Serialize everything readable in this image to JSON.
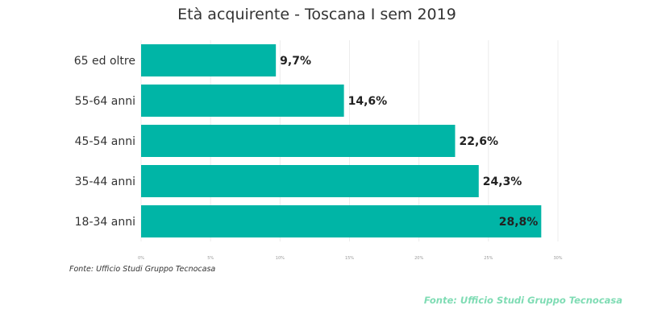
{
  "chart_data": {
    "type": "bar",
    "orientation": "horizontal",
    "title": "Età acquirente - Toscana I sem 2019",
    "categories": [
      "65 ed oltre",
      "55-64 anni",
      "45-54 anni",
      "35-44 anni",
      "18-34 anni"
    ],
    "values": [
      9.7,
      14.6,
      22.6,
      24.3,
      28.8
    ],
    "value_labels": [
      "9,7%",
      "14,6%",
      "22,6%",
      "24,3%",
      "28,8%"
    ],
    "xlim": [
      0,
      30
    ],
    "xticks": [
      0,
      5,
      10,
      15,
      20,
      25,
      30
    ],
    "xtick_labels": [
      "0%",
      "5%",
      "10%",
      "15%",
      "20%",
      "25%",
      "30%"
    ],
    "grid": true,
    "bar_color": "#00b5a6"
  },
  "source_text": "Fonte: Ufficio Studi Gruppo Tecnocasa",
  "watermark_text": "Fonte: Ufficio Studi Gruppo Tecnocasa",
  "colors": {
    "bar": "#00b5a6",
    "watermark": "#7fdcb4"
  }
}
